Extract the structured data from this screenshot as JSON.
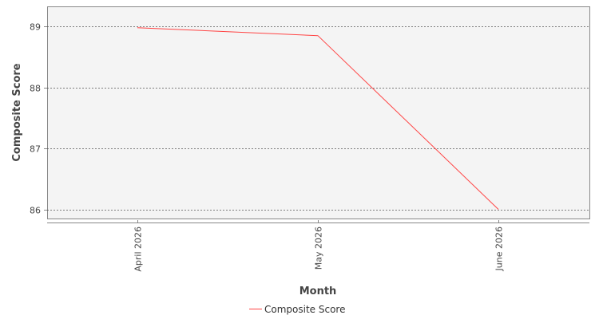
{
  "chart_data": {
    "type": "line",
    "categories": [
      "April 2026",
      "May 2026",
      "June 2026"
    ],
    "series": [
      {
        "name": "Composite Score",
        "values": [
          88.98,
          88.85,
          86.0
        ],
        "color": "#ff4444"
      }
    ],
    "xlabel": "Month",
    "ylabel": "Composite Score",
    "ylim": [
      85.85,
      89.33
    ],
    "yticks": [
      86,
      87,
      88,
      89
    ],
    "grid": true,
    "legend_placement": "bottom-center"
  }
}
